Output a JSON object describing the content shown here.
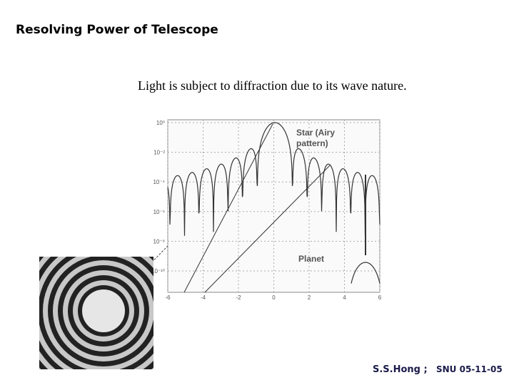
{
  "header": {
    "title": "Resolving Power of Telescope"
  },
  "subtitle": "Light is subject to diffraction due to its wave nature.",
  "figure": {
    "star_label": [
      "Star (Airy",
      "pattern)"
    ],
    "planet_label": "Planet",
    "y_tick_labels": [
      "10⁰",
      "10⁻²",
      "10⁻⁴",
      "10⁻⁶",
      "10⁻⁸",
      "10⁻¹⁰"
    ],
    "x_tick_labels": [
      "-6",
      "-4",
      "-2",
      "0",
      "2",
      "4",
      "6"
    ]
  },
  "footer": {
    "author": "S.S.Hong ;",
    "date": "SNU 05-11-05"
  }
}
